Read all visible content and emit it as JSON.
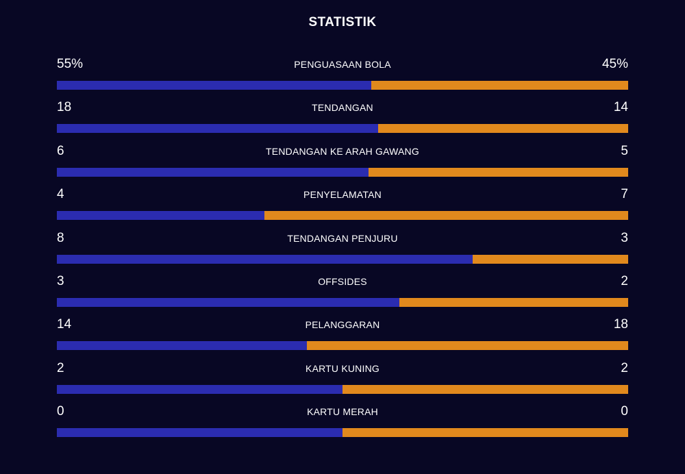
{
  "title": "STATISTIK",
  "colors": {
    "background": "#080724",
    "home": "#2b2cb0",
    "away": "#e1891d"
  },
  "stats": [
    {
      "label": "PENGUASAAN BOLA",
      "home": "55%",
      "away": "45%",
      "home_share": 0.55
    },
    {
      "label": "TENDANGAN",
      "home": "18",
      "away": "14",
      "home_share": 0.5625
    },
    {
      "label": "TENDANGAN KE ARAH GAWANG",
      "home": "6",
      "away": "5",
      "home_share": 0.5455
    },
    {
      "label": "PENYELAMATAN",
      "home": "4",
      "away": "7",
      "home_share": 0.3636
    },
    {
      "label": "TENDANGAN PENJURU",
      "home": "8",
      "away": "3",
      "home_share": 0.7273
    },
    {
      "label": "OFFSIDES",
      "home": "3",
      "away": "2",
      "home_share": 0.6
    },
    {
      "label": "PELANGGARAN",
      "home": "14",
      "away": "18",
      "home_share": 0.4375
    },
    {
      "label": "KARTU KUNING",
      "home": "2",
      "away": "2",
      "home_share": 0.5
    },
    {
      "label": "KARTU MERAH",
      "home": "0",
      "away": "0",
      "home_share": 0.5
    }
  ]
}
